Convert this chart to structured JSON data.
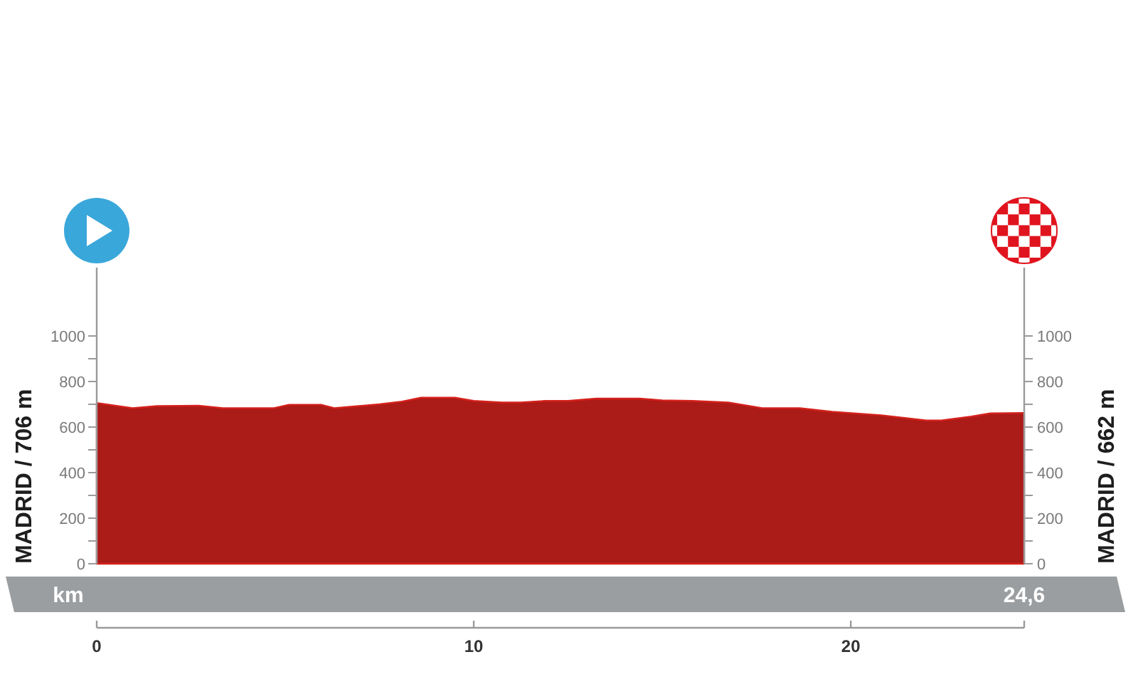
{
  "chart_data": {
    "type": "area",
    "xlabel": "km",
    "ylabel": "MADRID / 706 m",
    "y2label": "MADRID / 662 m",
    "x": [
      0,
      0.95,
      1.6,
      2.7,
      3.35,
      4.7,
      5.1,
      5.95,
      6.3,
      7.5,
      8.1,
      8.6,
      9.5,
      10,
      10.75,
      11.25,
      11.9,
      12.5,
      13.25,
      14.4,
      15,
      15.8,
      16.75,
      17.65,
      18.65,
      19.5,
      20.8,
      22,
      22.4,
      23.2,
      23.7,
      24.6
    ],
    "values": [
      706,
      683,
      692,
      694,
      683,
      683,
      698,
      698,
      683,
      700,
      712,
      729,
      729,
      715,
      708,
      708,
      715,
      715,
      725,
      725,
      717,
      715,
      708,
      683,
      683,
      667,
      652,
      629,
      629,
      646,
      660,
      662
    ],
    "color": "#ab1b17",
    "xlim": [
      0,
      24.6
    ],
    "xticks": [
      0,
      10,
      20,
      {
        "value": 24.6,
        "label": null
      }
    ],
    "ylim": [
      0,
      1300
    ],
    "yticks": [
      0,
      {
        "value": 100,
        "label": null
      },
      200,
      {
        "value": 300,
        "label": null
      },
      400,
      {
        "value": 500,
        "label": null
      },
      600,
      {
        "value": 700,
        "label": null
      },
      800,
      {
        "value": 900,
        "label": null
      },
      1000
    ],
    "y2lim": [
      0,
      1300
    ],
    "y2ticks": [
      0,
      {
        "value": 100,
        "label": null
      },
      200,
      {
        "value": 300,
        "label": null
      },
      400,
      {
        "value": 500,
        "label": null
      },
      600,
      {
        "value": 700,
        "label": null
      },
      800,
      {
        "value": 900,
        "label": null
      },
      1000
    ],
    "annotations": [
      "24,6"
    ]
  }
}
